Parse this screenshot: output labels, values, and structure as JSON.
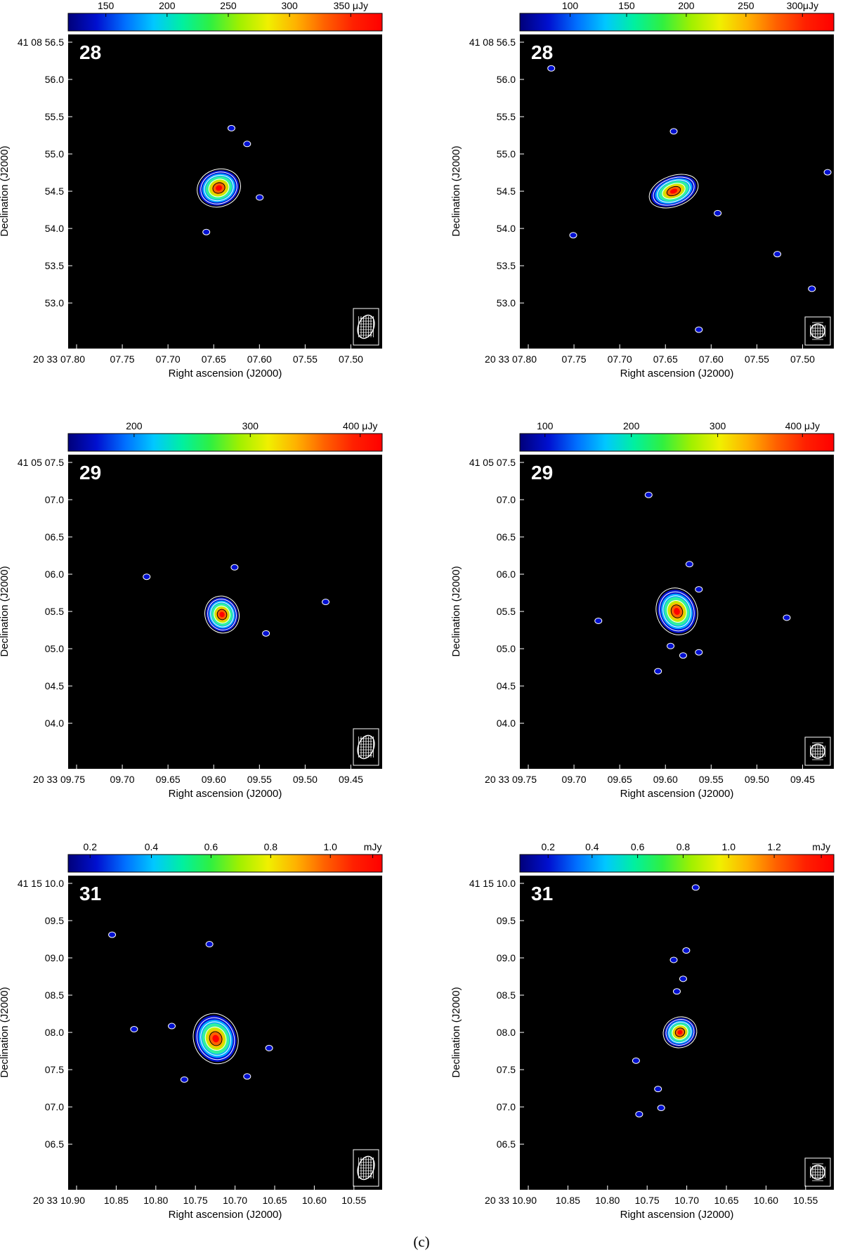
{
  "caption": "(c)",
  "colors": {
    "background": "#000000",
    "contour": "#ffffff",
    "frame": "#ffffff"
  },
  "colormap": [
    "#00007a",
    "#0010d0",
    "#0070ff",
    "#00c8ff",
    "#00f0a0",
    "#30f040",
    "#a0f000",
    "#f0f000",
    "#ffb000",
    "#ff6000",
    "#ff2000",
    "#ff0000"
  ],
  "panels": [
    {
      "id": "28-left",
      "label": "28",
      "colorbar": {
        "ticks": [
          "150",
          "200",
          "250",
          "300",
          "350 μJy"
        ],
        "tick_fracs": [
          0.12,
          0.315,
          0.51,
          0.705,
          0.9
        ]
      },
      "ylabel": "Declination (J2000)",
      "xlabel": "Right ascension (J2000)",
      "yticks": [
        "41 08 56.5",
        "56.0",
        "55.5",
        "55.0",
        "54.5",
        "54.0",
        "53.5",
        "53.0"
      ],
      "xticks": [
        "20 33 07.80",
        "07.75",
        "07.70",
        "07.65",
        "07.60",
        "07.55",
        "07.50"
      ],
      "source": {
        "x": 0.48,
        "y": 0.49,
        "rx": 0.065,
        "ry": 0.055
      },
      "specks": [
        [
          0.52,
          0.3
        ],
        [
          0.57,
          0.35
        ],
        [
          0.61,
          0.52
        ],
        [
          0.44,
          0.63
        ]
      ],
      "beam": "large"
    },
    {
      "id": "28-right",
      "label": "28",
      "colorbar": {
        "ticks": [
          "100",
          "150",
          "200",
          "250",
          "300μJy"
        ],
        "tick_fracs": [
          0.16,
          0.34,
          0.53,
          0.72,
          0.9
        ]
      },
      "ylabel": "Declination (J2000)",
      "xlabel": "Right ascension (J2000)",
      "yticks": [
        "41 08 56.5",
        "56.0",
        "55.5",
        "55.0",
        "54.5",
        "54.0",
        "53.5",
        "53.0"
      ],
      "xticks": [
        "20 33 07.80",
        "07.75",
        "07.70",
        "07.65",
        "07.60",
        "07.55",
        "07.50"
      ],
      "source": {
        "x": 0.49,
        "y": 0.5,
        "rx": 0.075,
        "ry": 0.045
      },
      "specks": [
        [
          0.1,
          0.11
        ],
        [
          0.49,
          0.31
        ],
        [
          0.63,
          0.57
        ],
        [
          0.17,
          0.64
        ],
        [
          0.82,
          0.7
        ],
        [
          0.93,
          0.81
        ],
        [
          0.57,
          0.94
        ],
        [
          0.98,
          0.44
        ]
      ],
      "beam": "small"
    },
    {
      "id": "29-left",
      "label": "29",
      "colorbar": {
        "ticks": [
          "200",
          "300",
          "400 μJy"
        ],
        "tick_fracs": [
          0.21,
          0.58,
          0.93
        ]
      },
      "ylabel": "Declination (J2000)",
      "xlabel": "Right ascension (J2000)",
      "yticks": [
        "41 05 07.5",
        "07.0",
        "06.5",
        "06.0",
        "05.5",
        "05.0",
        "04.5",
        "04.0"
      ],
      "xticks": [
        "20 33 09.75",
        "09.70",
        "09.65",
        "09.60",
        "09.55",
        "09.50",
        "09.45"
      ],
      "source": {
        "x": 0.49,
        "y": 0.51,
        "rx": 0.05,
        "ry": 0.055
      },
      "specks": [
        [
          0.25,
          0.39
        ],
        [
          0.53,
          0.36
        ],
        [
          0.63,
          0.57
        ],
        [
          0.82,
          0.47
        ]
      ],
      "beam": "large"
    },
    {
      "id": "29-right",
      "label": "29",
      "colorbar": {
        "ticks": [
          "100",
          "200",
          "300",
          "400 μJy"
        ],
        "tick_fracs": [
          0.08,
          0.355,
          0.63,
          0.9
        ]
      },
      "ylabel": "Declination (J2000)",
      "xlabel": "Right ascension (J2000)",
      "yticks": [
        "41 05 07.5",
        "07.0",
        "06.5",
        "06.0",
        "05.5",
        "05.0",
        "04.5",
        "04.0"
      ],
      "xticks": [
        "20 33 09.75",
        "09.70",
        "09.65",
        "09.60",
        "09.55",
        "09.50",
        "09.45"
      ],
      "source": {
        "x": 0.5,
        "y": 0.5,
        "rx": 0.06,
        "ry": 0.07
      },
      "specks": [
        [
          0.41,
          0.13
        ],
        [
          0.54,
          0.35
        ],
        [
          0.57,
          0.43
        ],
        [
          0.25,
          0.53
        ],
        [
          0.85,
          0.52
        ],
        [
          0.48,
          0.61
        ],
        [
          0.52,
          0.64
        ],
        [
          0.57,
          0.63
        ],
        [
          0.44,
          0.69
        ]
      ],
      "beam": "small"
    },
    {
      "id": "31-left",
      "label": "31",
      "colorbar": {
        "ticks": [
          "0.2",
          "0.4",
          "0.6",
          "0.8",
          "1.0",
          "mJy"
        ],
        "tick_fracs": [
          0.07,
          0.265,
          0.455,
          0.645,
          0.835,
          0.97
        ]
      },
      "ylabel": "Declination (J2000)",
      "xlabel": "Right ascension (J2000)",
      "yticks": [
        "41 15 10.0",
        "09.5",
        "09.0",
        "08.5",
        "08.0",
        "07.5",
        "07.0",
        "06.5"
      ],
      "xticks": [
        "20 33 10.90",
        "10.85",
        "10.80",
        "10.75",
        "10.70",
        "10.65",
        "10.60",
        "10.55"
      ],
      "source": {
        "x": 0.47,
        "y": 0.52,
        "rx": 0.065,
        "ry": 0.075
      },
      "specks": [
        [
          0.45,
          0.22
        ],
        [
          0.21,
          0.49
        ],
        [
          0.33,
          0.48
        ],
        [
          0.64,
          0.55
        ],
        [
          0.57,
          0.64
        ],
        [
          0.37,
          0.65
        ],
        [
          0.14,
          0.19
        ]
      ],
      "beam": "large"
    },
    {
      "id": "31-right",
      "label": "31",
      "colorbar": {
        "ticks": [
          "0.2",
          "0.4",
          "0.6",
          "0.8",
          "1.0",
          "1.2",
          "mJy"
        ],
        "tick_fracs": [
          0.09,
          0.23,
          0.375,
          0.52,
          0.665,
          0.81,
          0.96
        ]
      },
      "ylabel": "Declination (J2000)",
      "xlabel": "Right ascension (J2000)",
      "yticks": [
        "41 15 10.0",
        "09.5",
        "09.0",
        "08.5",
        "08.0",
        "07.5",
        "07.0",
        "06.5"
      ],
      "xticks": [
        "20 33 10.90",
        "10.85",
        "10.80",
        "10.75",
        "10.70",
        "10.65",
        "10.60",
        "10.55"
      ],
      "source": {
        "x": 0.51,
        "y": 0.5,
        "rx": 0.05,
        "ry": 0.045
      },
      "specks": [
        [
          0.56,
          0.04
        ],
        [
          0.49,
          0.27
        ],
        [
          0.53,
          0.24
        ],
        [
          0.52,
          0.33
        ],
        [
          0.5,
          0.37
        ],
        [
          0.37,
          0.59
        ],
        [
          0.44,
          0.68
        ],
        [
          0.38,
          0.76
        ],
        [
          0.45,
          0.74
        ]
      ],
      "beam": "small"
    }
  ]
}
